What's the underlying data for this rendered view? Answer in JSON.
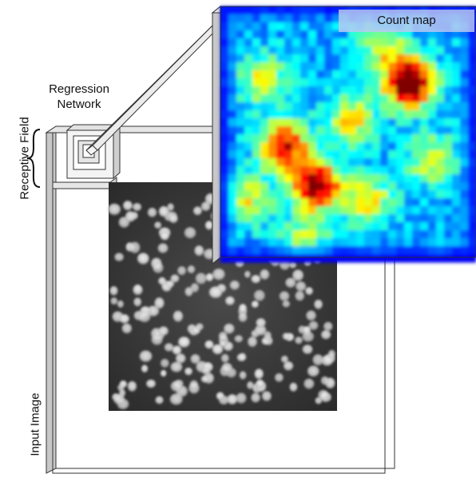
{
  "labels": {
    "regression_network": "Regression\nNetwork",
    "receptive_field": "Receptive Field",
    "input_image": "Input Image",
    "count_map": "Count map"
  },
  "colors": {
    "frame_stroke": "#333333",
    "frame_side": "#c8c8c8",
    "micrograph_bg": "#3a3a3a",
    "cell": "#d8d8d8",
    "countmap_low": "#0a1fd6",
    "countmap_mid": "#1fe0d8",
    "countmap_high": "#e81a10"
  }
}
